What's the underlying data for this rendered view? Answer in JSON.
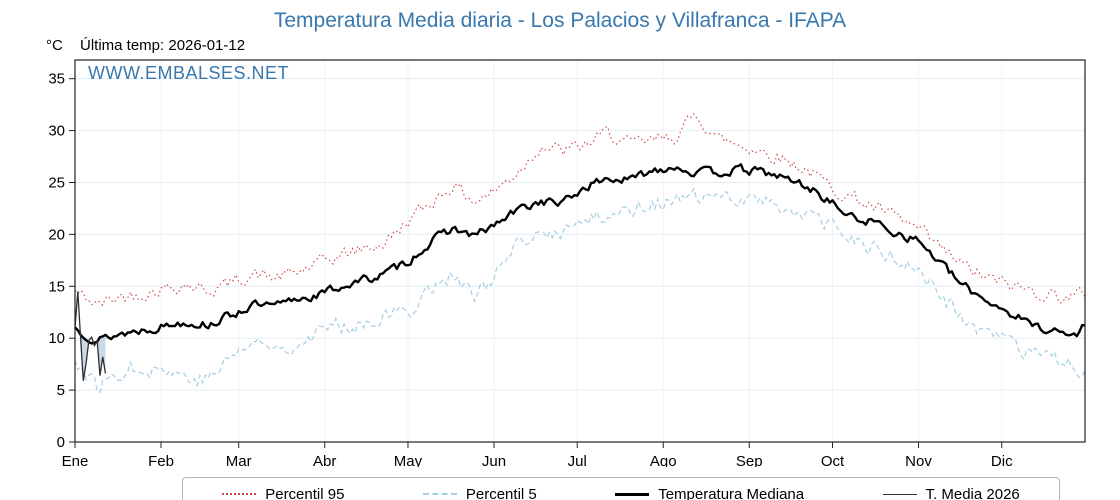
{
  "page": {
    "title": "Temperatura Media diaria - Los Palacios y Villafranca - IFAPA",
    "unit_label": "°C",
    "last_temp_label": "Última temp: 2026-01-12",
    "watermark": "WWW.EMBALSES.NET"
  },
  "colors": {
    "title": "#3878ad",
    "watermark": "#3878ad",
    "grid": "#e4edf4",
    "grid_vertical": "#edf3f8",
    "axis": "#222222",
    "p95": "#d24a4a",
    "p5": "#a5cfe3",
    "median": "#000000",
    "t2026": "#2f2f2f",
    "anomaly_fill": "#a9c2da"
  },
  "chart_data": {
    "type": "line",
    "title": "Temperatura Media diaria - Los Palacios y Villafranca - IFAPA",
    "xlabel": "",
    "ylabel": "°C",
    "ylim": [
      0,
      36.8
    ],
    "y_ticks": [
      0,
      5,
      10,
      15,
      20,
      25,
      30,
      35
    ],
    "x_months": [
      "Ene",
      "Feb",
      "Mar",
      "Abr",
      "May",
      "Jun",
      "Jul",
      "Ago",
      "Sep",
      "Oct",
      "Nov",
      "Dic"
    ],
    "month_start_days": [
      0,
      31,
      59,
      90,
      120,
      151,
      181,
      212,
      243,
      273,
      304,
      334
    ],
    "days_in_year": 365,
    "grid": true,
    "series": [
      {
        "name": "Percentil 95",
        "style": "dotted",
        "color": "#d24a4a",
        "anchor_days": [
          0,
          8,
          16,
          24,
          32,
          40,
          48,
          56,
          64,
          72,
          80,
          88,
          96,
          104,
          112,
          120,
          128,
          136,
          144,
          152,
          160,
          168,
          176,
          184,
          192,
          200,
          208,
          216,
          224,
          232,
          240,
          248,
          256,
          264,
          272,
          280,
          288,
          296,
          304,
          312,
          320,
          328,
          336,
          344,
          352,
          360,
          364
        ],
        "anchor_values": [
          14.5,
          13.2,
          14.0,
          14.3,
          14.8,
          15.2,
          14.6,
          15.3,
          16.2,
          15.8,
          16.3,
          17.2,
          18.0,
          18.6,
          19.2,
          21.3,
          23.0,
          24.8,
          23.2,
          24.3,
          26.2,
          28.6,
          28.0,
          28.6,
          29.8,
          28.6,
          29.0,
          29.4,
          31.5,
          29.2,
          28.6,
          28.0,
          27.2,
          26.2,
          24.6,
          23.6,
          22.6,
          21.6,
          20.4,
          18.6,
          17.0,
          15.8,
          15.2,
          14.6,
          14.2,
          13.9,
          14.4
        ]
      },
      {
        "name": "Percentil 5",
        "style": "dashed",
        "color": "#a5cfe3",
        "anchor_days": [
          0,
          8,
          16,
          24,
          32,
          40,
          48,
          56,
          64,
          72,
          80,
          88,
          96,
          104,
          112,
          120,
          128,
          136,
          144,
          152,
          160,
          168,
          176,
          184,
          192,
          200,
          208,
          216,
          224,
          232,
          240,
          248,
          256,
          264,
          272,
          280,
          288,
          296,
          304,
          312,
          320,
          328,
          336,
          344,
          352,
          360,
          364
        ],
        "anchor_values": [
          8.0,
          5.2,
          6.8,
          7.4,
          7.0,
          6.4,
          6.0,
          8.2,
          9.6,
          9.0,
          9.6,
          10.8,
          11.2,
          11.6,
          12.2,
          12.6,
          14.8,
          16.2,
          13.8,
          16.4,
          18.8,
          19.8,
          20.4,
          21.2,
          22.0,
          22.4,
          23.2,
          23.0,
          23.6,
          23.2,
          23.8,
          23.2,
          22.6,
          21.8,
          20.6,
          19.6,
          18.6,
          17.6,
          16.4,
          14.2,
          11.8,
          10.4,
          9.4,
          8.4,
          7.8,
          7.4,
          7.0
        ]
      },
      {
        "name": "Temperatura Mediana",
        "style": "solid-thick",
        "color": "#000000",
        "anchor_days": [
          0,
          8,
          16,
          24,
          32,
          40,
          48,
          56,
          64,
          72,
          80,
          88,
          96,
          104,
          112,
          120,
          128,
          136,
          144,
          152,
          160,
          168,
          176,
          184,
          192,
          200,
          208,
          216,
          224,
          232,
          240,
          248,
          256,
          264,
          272,
          280,
          288,
          296,
          304,
          312,
          320,
          328,
          336,
          344,
          352,
          360,
          364
        ],
        "anchor_values": [
          11.0,
          9.8,
          10.4,
          10.8,
          11.2,
          11.6,
          11.3,
          12.2,
          13.2,
          13.0,
          13.8,
          14.2,
          15.0,
          15.6,
          16.2,
          17.4,
          19.2,
          20.6,
          19.8,
          21.0,
          22.4,
          23.2,
          23.0,
          24.6,
          25.4,
          25.2,
          26.2,
          26.6,
          25.9,
          26.0,
          26.2,
          26.0,
          25.4,
          24.6,
          23.2,
          21.6,
          21.2,
          20.2,
          19.4,
          17.2,
          15.0,
          13.8,
          12.6,
          11.4,
          10.8,
          10.2,
          11.2
        ]
      },
      {
        "name": "T. Media 2026",
        "style": "solid-thin",
        "color": "#2f2f2f",
        "days": [
          0,
          1,
          2,
          3,
          4,
          5,
          6,
          7,
          8,
          9,
          10,
          11
        ],
        "values": [
          11.0,
          14.5,
          10.2,
          5.9,
          7.6,
          9.8,
          10.1,
          9.3,
          9.7,
          6.4,
          8.2,
          6.6
        ],
        "fill_below_series": "Temperatura Mediana",
        "fill_color": "#a9c2da"
      }
    ],
    "legend": {
      "position": "bottom",
      "entries": [
        "Percentil 95",
        "Percentil 5",
        "Temperatura Mediana",
        "T. Media 2026"
      ]
    }
  }
}
